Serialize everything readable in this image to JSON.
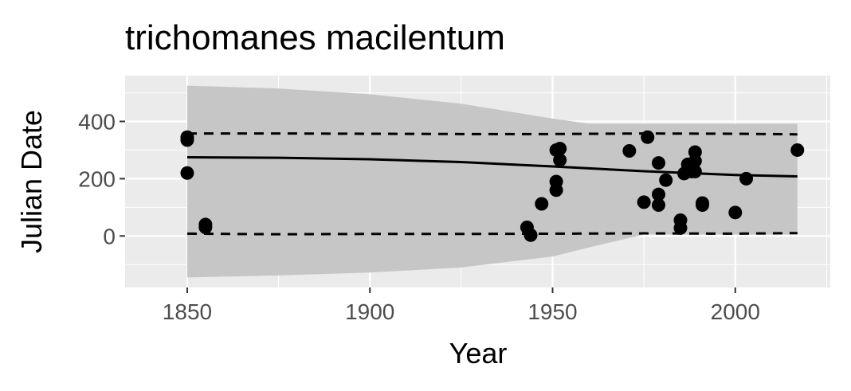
{
  "chart_data": {
    "type": "scatter",
    "title": "trichomanes macilentum",
    "xlabel": "Year",
    "ylabel": "Julian Date",
    "xlim": [
      1833,
      2026
    ],
    "ylim": [
      -180,
      560
    ],
    "xticks": [
      1850,
      1900,
      1950,
      2000
    ],
    "yticks": [
      0,
      200,
      400
    ],
    "grid": true,
    "points": [
      {
        "x": 1850,
        "y": 345
      },
      {
        "x": 1850,
        "y": 335
      },
      {
        "x": 1850,
        "y": 220
      },
      {
        "x": 1855,
        "y": 40
      },
      {
        "x": 1855,
        "y": 30
      },
      {
        "x": 1943,
        "y": 30
      },
      {
        "x": 1944,
        "y": 3
      },
      {
        "x": 1947,
        "y": 112
      },
      {
        "x": 1951,
        "y": 300
      },
      {
        "x": 1951,
        "y": 190
      },
      {
        "x": 1951,
        "y": 160
      },
      {
        "x": 1952,
        "y": 305
      },
      {
        "x": 1952,
        "y": 265
      },
      {
        "x": 1971,
        "y": 297
      },
      {
        "x": 1975,
        "y": 118
      },
      {
        "x": 1976,
        "y": 345
      },
      {
        "x": 1979,
        "y": 255
      },
      {
        "x": 1979,
        "y": 145
      },
      {
        "x": 1979,
        "y": 108
      },
      {
        "x": 1981,
        "y": 195
      },
      {
        "x": 1985,
        "y": 55
      },
      {
        "x": 1985,
        "y": 28
      },
      {
        "x": 1986,
        "y": 218
      },
      {
        "x": 1987,
        "y": 250
      },
      {
        "x": 1988,
        "y": 225
      },
      {
        "x": 1989,
        "y": 293
      },
      {
        "x": 1989,
        "y": 262
      },
      {
        "x": 1989,
        "y": 225
      },
      {
        "x": 1991,
        "y": 115
      },
      {
        "x": 1991,
        "y": 108
      },
      {
        "x": 2000,
        "y": 82
      },
      {
        "x": 2003,
        "y": 200
      },
      {
        "x": 2017,
        "y": 300
      }
    ],
    "fit_line": {
      "x": [
        1850,
        1875,
        1900,
        1925,
        1950,
        1975,
        2000,
        2017
      ],
      "y": [
        275,
        273,
        268,
        258,
        243,
        226,
        213,
        208
      ]
    },
    "confidence_band": {
      "x": [
        1850,
        1875,
        1900,
        1925,
        1950,
        1960,
        1975,
        2000,
        2017
      ],
      "upper": [
        525,
        515,
        495,
        462,
        410,
        392,
        392,
        392,
        392
      ],
      "lower": [
        -145,
        -138,
        -128,
        -110,
        -72,
        -40,
        5,
        5,
        5
      ]
    },
    "upper_dashed": {
      "x": [
        1850,
        1875,
        1900,
        1925,
        1950,
        1975,
        2000,
        2017
      ],
      "y": [
        358,
        358,
        357,
        356,
        356,
        358,
        357,
        355
      ]
    },
    "lower_dashed": {
      "x": [
        1850,
        1875,
        1900,
        1925,
        1950,
        1975,
        2000,
        2017
      ],
      "y": [
        8,
        6,
        7,
        7,
        8,
        9,
        8,
        10
      ]
    },
    "colors": {
      "panel": "#ebebeb",
      "grid_major": "#ffffff",
      "band": "#c6c6c6",
      "points": "#000000",
      "line": "#000000",
      "tick_label": "#4d4d4d"
    }
  }
}
